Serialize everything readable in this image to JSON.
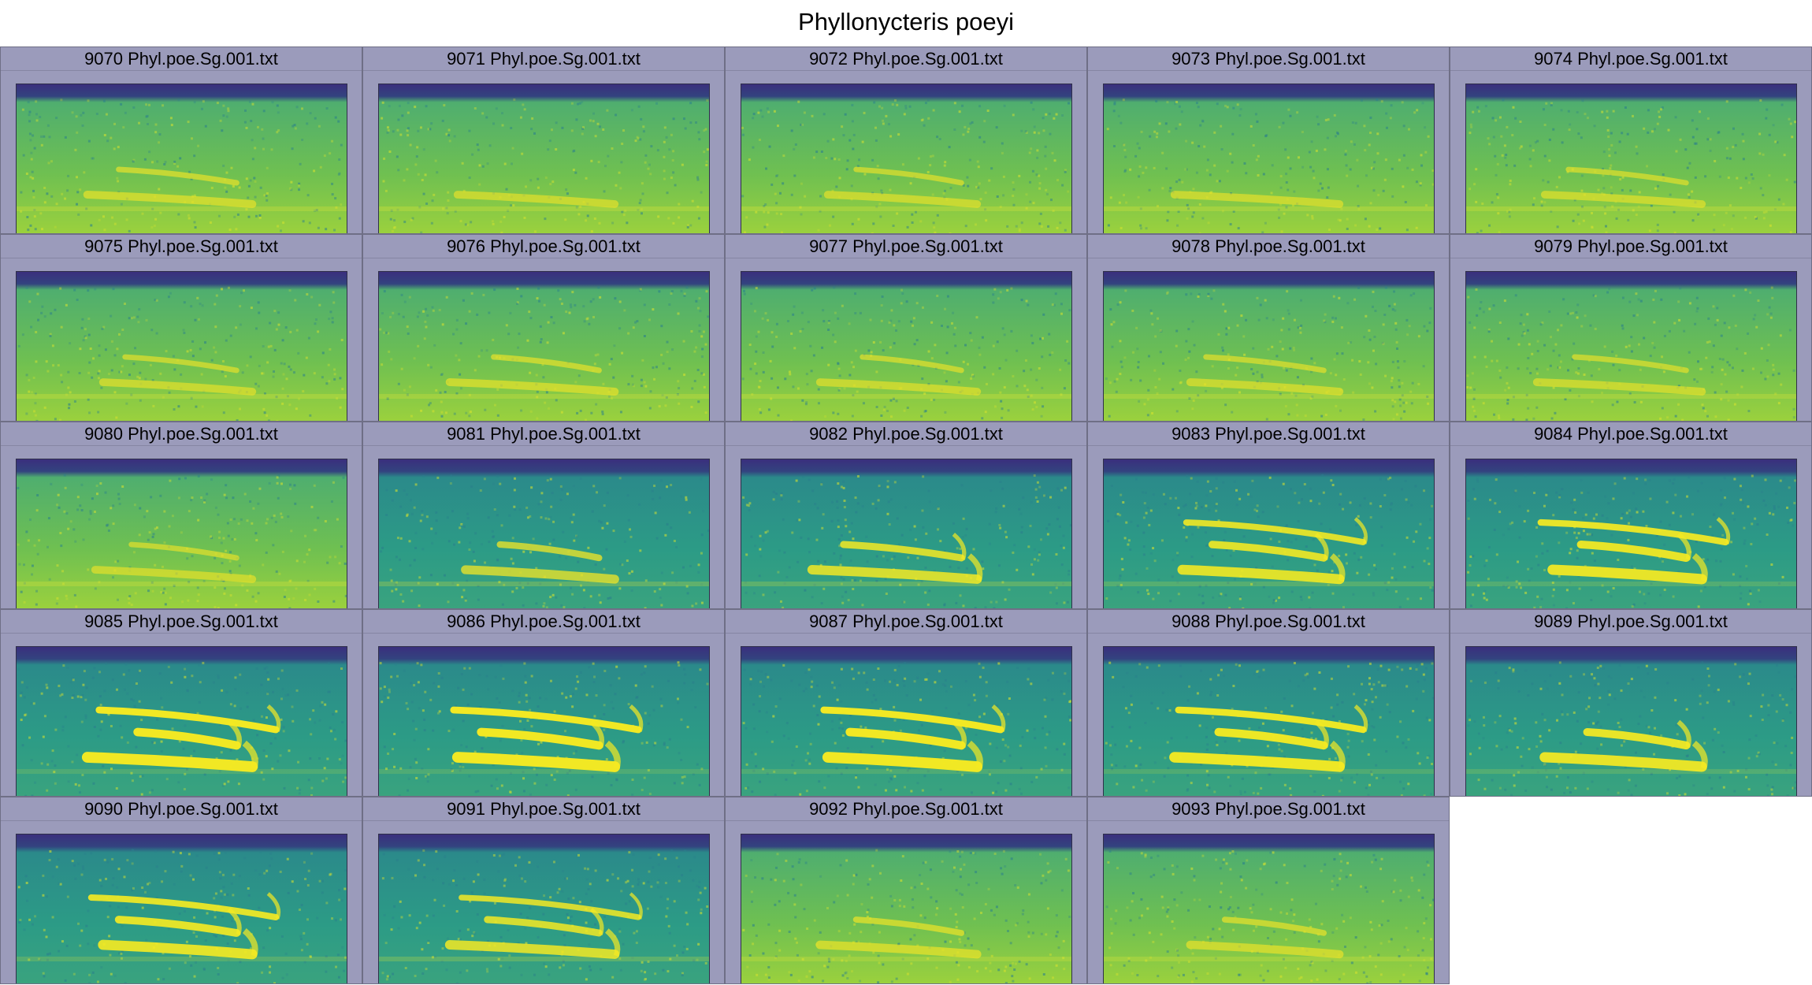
{
  "figure": {
    "title": "Phyllonycteris poeyi"
  },
  "panels": [
    {
      "label": "9070 Phyl.poe.Sg.001.txt",
      "calls": 2,
      "intensity": 0.35
    },
    {
      "label": "9071 Phyl.poe.Sg.001.txt",
      "calls": 1,
      "intensity": 0.3
    },
    {
      "label": "9072 Phyl.poe.Sg.001.txt",
      "calls": 2,
      "intensity": 0.3
    },
    {
      "label": "9073 Phyl.poe.Sg.001.txt",
      "calls": 1,
      "intensity": 0.3
    },
    {
      "label": "9074 Phyl.poe.Sg.001.txt",
      "calls": 2,
      "intensity": 0.28
    },
    {
      "label": "9075 Phyl.poe.Sg.001.txt",
      "calls": 2,
      "intensity": 0.3
    },
    {
      "label": "9076 Phyl.poe.Sg.001.txt",
      "calls": 2,
      "intensity": 0.35
    },
    {
      "label": "9077 Phyl.poe.Sg.001.txt",
      "calls": 2,
      "intensity": 0.3
    },
    {
      "label": "9078 Phyl.poe.Sg.001.txt",
      "calls": 2,
      "intensity": 0.32
    },
    {
      "label": "9079 Phyl.poe.Sg.001.txt",
      "calls": 2,
      "intensity": 0.32
    },
    {
      "label": "9080 Phyl.poe.Sg.001.txt",
      "calls": 2,
      "intensity": 0.3
    },
    {
      "label": "9081 Phyl.poe.Sg.001.txt",
      "calls": 2,
      "intensity": 0.55
    },
    {
      "label": "9082 Phyl.poe.Sg.001.txt",
      "calls": 2,
      "intensity": 0.65
    },
    {
      "label": "9083 Phyl.poe.Sg.001.txt",
      "calls": 3,
      "intensity": 0.75
    },
    {
      "label": "9084 Phyl.poe.Sg.001.txt",
      "calls": 3,
      "intensity": 0.85
    },
    {
      "label": "9085 Phyl.poe.Sg.001.txt",
      "calls": 3,
      "intensity": 0.95
    },
    {
      "label": "9086 Phyl.poe.Sg.001.txt",
      "calls": 3,
      "intensity": 0.95
    },
    {
      "label": "9087 Phyl.poe.Sg.001.txt",
      "calls": 3,
      "intensity": 0.95
    },
    {
      "label": "9088 Phyl.poe.Sg.001.txt",
      "calls": 3,
      "intensity": 0.9
    },
    {
      "label": "9089 Phyl.poe.Sg.001.txt",
      "calls": 2,
      "intensity": 0.85
    },
    {
      "label": "9090 Phyl.poe.Sg.001.txt",
      "calls": 3,
      "intensity": 0.8
    },
    {
      "label": "9091 Phyl.poe.Sg.001.txt",
      "calls": 3,
      "intensity": 0.65
    },
    {
      "label": "9092 Phyl.poe.Sg.001.txt",
      "calls": 2,
      "intensity": 0.45
    },
    {
      "label": "9093 Phyl.poe.Sg.001.txt",
      "calls": 2,
      "intensity": 0.4
    }
  ],
  "colors": {
    "panel_bg": "#9b9bbb",
    "spec_low": "#3b2d7a",
    "spec_mid": "#23a28a",
    "spec_high": "#f2e52a"
  }
}
